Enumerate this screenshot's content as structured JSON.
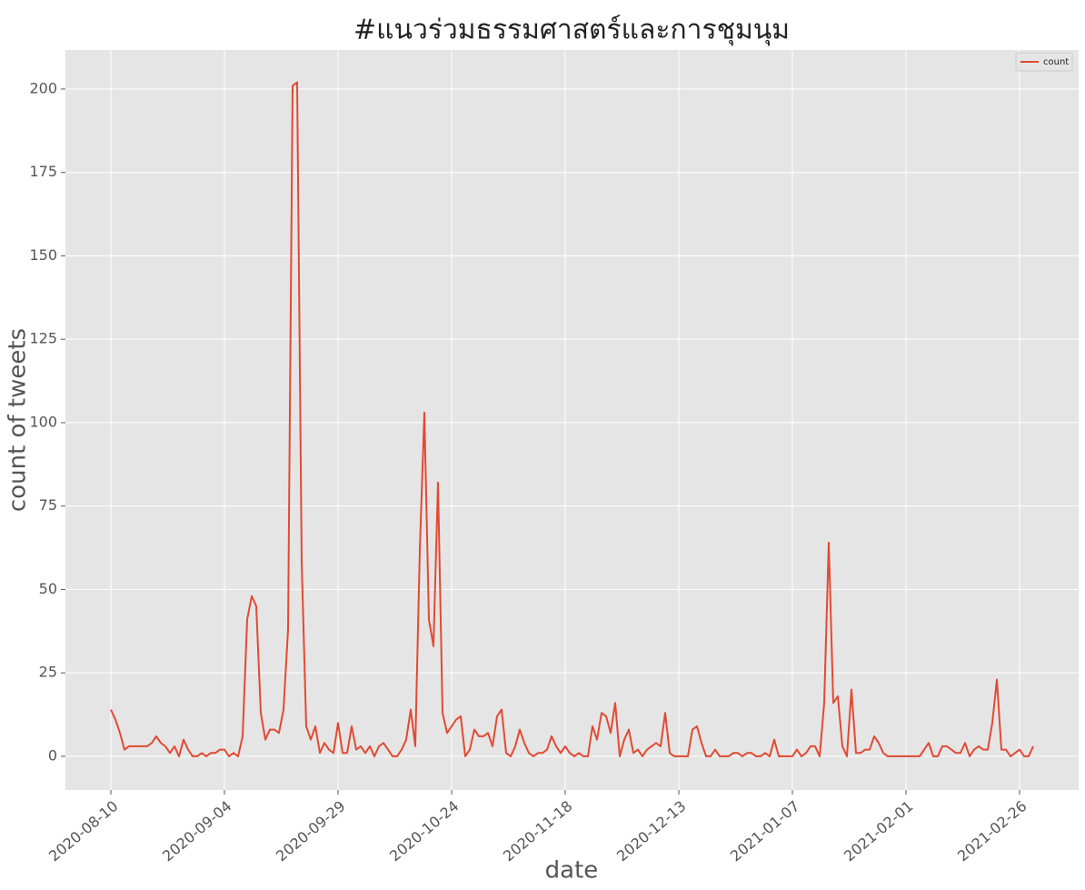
{
  "chart_data": {
    "type": "line",
    "title": "#แนวร่วมธรรมศาสตร์และการชุมนุม",
    "x_label": "date",
    "y_label": "count of tweets",
    "x": [
      "2020-08-10",
      "2020-08-11",
      "2020-08-12",
      "2020-08-13",
      "2020-08-14",
      "2020-08-15",
      "2020-08-16",
      "2020-08-17",
      "2020-08-18",
      "2020-08-19",
      "2020-08-20",
      "2020-08-21",
      "2020-08-22",
      "2020-08-23",
      "2020-08-24",
      "2020-08-25",
      "2020-08-26",
      "2020-08-27",
      "2020-08-28",
      "2020-08-29",
      "2020-08-30",
      "2020-08-31",
      "2020-09-01",
      "2020-09-02",
      "2020-09-03",
      "2020-09-04",
      "2020-09-05",
      "2020-09-06",
      "2020-09-07",
      "2020-09-08",
      "2020-09-09",
      "2020-09-10",
      "2020-09-11",
      "2020-09-12",
      "2020-09-13",
      "2020-09-14",
      "2020-09-15",
      "2020-09-16",
      "2020-09-17",
      "2020-09-18",
      "2020-09-19",
      "2020-09-20",
      "2020-09-21",
      "2020-09-22",
      "2020-09-23",
      "2020-09-24",
      "2020-09-25",
      "2020-09-26",
      "2020-09-27",
      "2020-09-28",
      "2020-09-29",
      "2020-09-30",
      "2020-10-01",
      "2020-10-02",
      "2020-10-03",
      "2020-10-04",
      "2020-10-05",
      "2020-10-06",
      "2020-10-07",
      "2020-10-08",
      "2020-10-09",
      "2020-10-10",
      "2020-10-11",
      "2020-10-12",
      "2020-10-13",
      "2020-10-14",
      "2020-10-15",
      "2020-10-16",
      "2020-10-17",
      "2020-10-18",
      "2020-10-19",
      "2020-10-20",
      "2020-10-21",
      "2020-10-22",
      "2020-10-23",
      "2020-10-24",
      "2020-10-25",
      "2020-10-26",
      "2020-10-27",
      "2020-10-28",
      "2020-10-29",
      "2020-10-30",
      "2020-10-31",
      "2020-11-01",
      "2020-11-02",
      "2020-11-03",
      "2020-11-04",
      "2020-11-05",
      "2020-11-06",
      "2020-11-07",
      "2020-11-08",
      "2020-11-09",
      "2020-11-10",
      "2020-11-11",
      "2020-11-12",
      "2020-11-13",
      "2020-11-14",
      "2020-11-15",
      "2020-11-16",
      "2020-11-17",
      "2020-11-18",
      "2020-11-19",
      "2020-11-20",
      "2020-11-21",
      "2020-11-22",
      "2020-11-23",
      "2020-11-24",
      "2020-11-25",
      "2020-11-26",
      "2020-11-27",
      "2020-11-28",
      "2020-11-29",
      "2020-11-30",
      "2020-12-01",
      "2020-12-02",
      "2020-12-03",
      "2020-12-04",
      "2020-12-05",
      "2020-12-06",
      "2020-12-07",
      "2020-12-08",
      "2020-12-09",
      "2020-12-10",
      "2020-12-11",
      "2020-12-12",
      "2020-12-13",
      "2020-12-14",
      "2020-12-15",
      "2020-12-16",
      "2020-12-17",
      "2020-12-18",
      "2020-12-19",
      "2020-12-20",
      "2020-12-21",
      "2020-12-22",
      "2020-12-23",
      "2020-12-24",
      "2020-12-25",
      "2020-12-26",
      "2020-12-27",
      "2020-12-28",
      "2020-12-29",
      "2020-12-30",
      "2020-12-31",
      "2021-01-01",
      "2021-01-02",
      "2021-01-03",
      "2021-01-04",
      "2021-01-05",
      "2021-01-06",
      "2021-01-07",
      "2021-01-08",
      "2021-01-09",
      "2021-01-10",
      "2021-01-11",
      "2021-01-12",
      "2021-01-13",
      "2021-01-14",
      "2021-01-15",
      "2021-01-16",
      "2021-01-17",
      "2021-01-18",
      "2021-01-19",
      "2021-01-20",
      "2021-01-21",
      "2021-01-22",
      "2021-01-23",
      "2021-01-24",
      "2021-01-25",
      "2021-01-26",
      "2021-01-27",
      "2021-01-28",
      "2021-01-29",
      "2021-01-30",
      "2021-01-31",
      "2021-02-01",
      "2021-02-02",
      "2021-02-03",
      "2021-02-04",
      "2021-02-05",
      "2021-02-06",
      "2021-02-07",
      "2021-02-08",
      "2021-02-09",
      "2021-02-10",
      "2021-02-11",
      "2021-02-12",
      "2021-02-13",
      "2021-02-14",
      "2021-02-15",
      "2021-02-16",
      "2021-02-17",
      "2021-02-18",
      "2021-02-19",
      "2021-02-20",
      "2021-02-21",
      "2021-02-22",
      "2021-02-23",
      "2021-02-24",
      "2021-02-25",
      "2021-02-26",
      "2021-02-27",
      "2021-02-28",
      "2021-03-01"
    ],
    "series": [
      {
        "name": "count",
        "color": "#e24a33",
        "values": [
          14,
          11,
          7,
          2,
          3,
          3,
          3,
          3,
          3,
          4,
          6,
          4,
          3,
          1,
          3,
          0,
          5,
          2,
          0,
          0,
          1,
          0,
          1,
          1,
          2,
          2,
          0,
          1,
          0,
          6,
          41,
          48,
          45,
          13,
          5,
          8,
          8,
          7,
          14,
          38,
          201,
          202,
          58,
          9,
          5,
          9,
          1,
          4,
          2,
          1,
          10,
          1,
          1,
          9,
          2,
          3,
          1,
          3,
          0,
          3,
          4,
          2,
          0,
          0,
          2,
          5,
          14,
          3,
          62,
          103,
          41,
          33,
          82,
          13,
          7,
          9,
          11,
          12,
          0,
          2,
          8,
          6,
          6,
          7,
          3,
          12,
          14,
          1,
          0,
          3,
          8,
          4,
          1,
          0,
          1,
          1,
          2,
          6,
          3,
          1,
          3,
          1,
          0,
          1,
          0,
          0,
          9,
          5,
          13,
          12,
          7,
          16,
          0,
          5,
          8,
          1,
          2,
          0,
          2,
          3,
          4,
          3,
          13,
          1,
          0,
          0,
          0,
          0,
          8,
          9,
          4,
          0,
          0,
          2,
          0,
          0,
          0,
          1,
          1,
          0,
          1,
          1,
          0,
          0,
          1,
          0,
          5,
          0,
          0,
          0,
          0,
          2,
          0,
          1,
          3,
          3,
          0,
          16,
          64,
          16,
          18,
          3,
          0,
          20,
          1,
          1,
          2,
          2,
          6,
          4,
          1,
          0,
          0,
          0,
          0,
          0,
          0,
          0,
          0,
          2,
          4,
          0,
          0,
          3,
          3,
          2,
          1,
          1,
          4,
          0,
          2,
          3,
          2,
          2,
          10,
          23,
          2,
          2,
          0,
          1,
          2,
          0,
          0,
          3
        ]
      }
    ],
    "xlim": [
      "2020-07-31",
      "2021-03-11"
    ],
    "xticks": [
      "2020-08-10",
      "2020-09-04",
      "2020-09-29",
      "2020-10-24",
      "2020-11-18",
      "2020-12-13",
      "2021-01-07",
      "2021-02-01",
      "2021-02-26"
    ],
    "ylim": [
      -10.1,
      211.7
    ],
    "yticks": [
      0,
      25,
      50,
      75,
      100,
      125,
      150,
      175,
      200
    ],
    "grid": true,
    "legend": "upper right"
  }
}
